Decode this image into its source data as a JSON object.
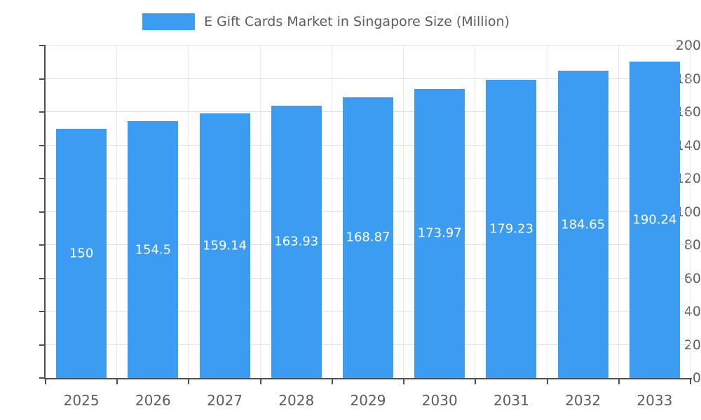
{
  "chart_data": {
    "type": "bar",
    "title": "E Gift Cards Market in Singapore Size (Million)",
    "categories": [
      "2025",
      "2026",
      "2027",
      "2028",
      "2029",
      "2030",
      "2031",
      "2032",
      "2033"
    ],
    "values": [
      150,
      154.5,
      159.14,
      163.93,
      168.87,
      173.97,
      179.23,
      184.65,
      190.24
    ],
    "value_labels": [
      "150",
      "154.5",
      "159.14",
      "163.93",
      "168.87",
      "173.97",
      "179.23",
      "184.65",
      "190.24"
    ],
    "ylim": [
      0,
      200
    ],
    "yticks": [
      0,
      20,
      40,
      60,
      80,
      100,
      120,
      140,
      160,
      180,
      200
    ],
    "bar_color": "#3b9cf2",
    "value_label_color": "#ffffff",
    "grid": true,
    "legend_position": "top"
  }
}
